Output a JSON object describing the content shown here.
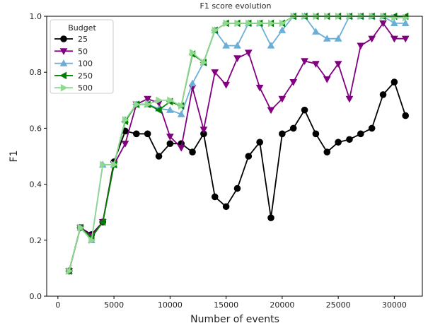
{
  "chart_data": {
    "type": "line",
    "title": "F1 score evolution",
    "xlabel": "Number of events",
    "ylabel": "F1",
    "xlim": [
      -1000,
      32500
    ],
    "ylim": [
      0.0,
      1.0
    ],
    "xticks": [
      0,
      5000,
      10000,
      15000,
      20000,
      25000,
      30000
    ],
    "yticks": [
      0.0,
      0.2,
      0.4,
      0.6,
      0.8,
      1.0
    ],
    "xtick_labels": [
      "0",
      "5000",
      "10000",
      "15000",
      "20000",
      "25000",
      "30000"
    ],
    "ytick_labels": [
      "0.0",
      "0.2",
      "0.4",
      "0.6",
      "0.8",
      "1.0"
    ],
    "grid": false,
    "legend": {
      "title": "Budget",
      "placement": "top-left"
    },
    "series": [
      {
        "name": "25",
        "color": "#000000",
        "marker": "circle",
        "x": [
          1000,
          2000,
          3000,
          4000,
          5000,
          6000,
          7000,
          8000,
          9000,
          10000,
          11000,
          12000,
          13000,
          14000,
          15000,
          16000,
          17000,
          18000,
          19000,
          20000,
          21000,
          22000,
          23000,
          24000,
          25000,
          26000,
          27000,
          28000,
          29000,
          30000,
          31000
        ],
        "y": [
          0.09,
          0.245,
          0.22,
          0.265,
          0.48,
          0.59,
          0.58,
          0.58,
          0.5,
          0.545,
          0.545,
          0.515,
          0.58,
          0.355,
          0.32,
          0.385,
          0.5,
          0.55,
          0.28,
          0.58,
          0.6,
          0.665,
          0.58,
          0.515,
          0.55,
          0.56,
          0.58,
          0.6,
          0.72,
          0.765,
          0.645
        ]
      },
      {
        "name": "50",
        "color": "#800080",
        "marker": "triangle-down",
        "x": [
          1000,
          2000,
          3000,
          4000,
          5000,
          6000,
          7000,
          8000,
          9000,
          10000,
          11000,
          12000,
          13000,
          14000,
          15000,
          16000,
          17000,
          18000,
          19000,
          20000,
          21000,
          22000,
          23000,
          24000,
          25000,
          26000,
          27000,
          28000,
          29000,
          30000,
          31000
        ],
        "y": [
          0.09,
          0.245,
          0.215,
          0.265,
          0.47,
          0.545,
          0.685,
          0.705,
          0.69,
          0.57,
          0.53,
          0.745,
          0.595,
          0.8,
          0.755,
          0.85,
          0.87,
          0.745,
          0.665,
          0.705,
          0.765,
          0.84,
          0.83,
          0.775,
          0.83,
          0.705,
          0.895,
          0.92,
          0.975,
          0.92,
          0.92
        ]
      },
      {
        "name": "100",
        "color": "#6baed6",
        "marker": "triangle-up",
        "x": [
          1000,
          2000,
          3000,
          4000,
          5000,
          6000,
          7000,
          8000,
          9000,
          10000,
          11000,
          12000,
          13000,
          14000,
          15000,
          16000,
          17000,
          18000,
          19000,
          20000,
          21000,
          22000,
          23000,
          24000,
          25000,
          26000,
          27000,
          28000,
          29000,
          30000,
          31000
        ],
        "y": [
          0.09,
          0.245,
          0.2,
          0.47,
          0.47,
          0.63,
          0.685,
          0.685,
          0.67,
          0.665,
          0.65,
          0.76,
          0.835,
          0.95,
          0.895,
          0.895,
          0.975,
          0.975,
          0.895,
          0.95,
          1.0,
          1.0,
          0.945,
          0.92,
          0.92,
          1.0,
          1.0,
          1.0,
          1.0,
          0.975,
          0.975
        ]
      },
      {
        "name": "250",
        "color": "#008000",
        "marker": "triangle-left",
        "x": [
          1000,
          2000,
          3000,
          4000,
          5000,
          6000,
          7000,
          8000,
          9000,
          10000,
          11000,
          12000,
          13000,
          14000,
          15000,
          16000,
          17000,
          18000,
          19000,
          20000,
          21000,
          22000,
          23000,
          24000,
          25000,
          26000,
          27000,
          28000,
          29000,
          30000,
          31000
        ],
        "y": [
          0.09,
          0.245,
          0.21,
          0.265,
          0.47,
          0.625,
          0.685,
          0.685,
          0.665,
          0.695,
          0.68,
          0.865,
          0.835,
          0.95,
          0.975,
          0.975,
          0.975,
          0.975,
          0.975,
          0.975,
          1.0,
          1.0,
          1.0,
          1.0,
          1.0,
          1.0,
          1.0,
          1.0,
          1.0,
          1.0,
          1.0
        ]
      },
      {
        "name": "500",
        "color": "#90d890",
        "marker": "triangle-right",
        "x": [
          1000,
          2000,
          3000,
          4000,
          5000,
          6000,
          7000,
          8000,
          9000,
          10000,
          11000,
          12000,
          13000,
          14000,
          15000,
          16000,
          17000,
          18000,
          19000,
          20000,
          21000,
          22000,
          23000,
          24000,
          25000,
          26000,
          27000,
          28000,
          29000,
          30000,
          31000
        ],
        "y": [
          0.09,
          0.245,
          0.2,
          0.47,
          0.47,
          0.63,
          0.685,
          0.685,
          0.7,
          0.7,
          0.68,
          0.87,
          0.835,
          0.95,
          0.975,
          0.975,
          0.975,
          0.975,
          0.975,
          0.975,
          1.0,
          1.0,
          1.0,
          1.0,
          1.0,
          1.0,
          1.0,
          1.0,
          1.0,
          0.995,
          0.995
        ]
      }
    ]
  }
}
